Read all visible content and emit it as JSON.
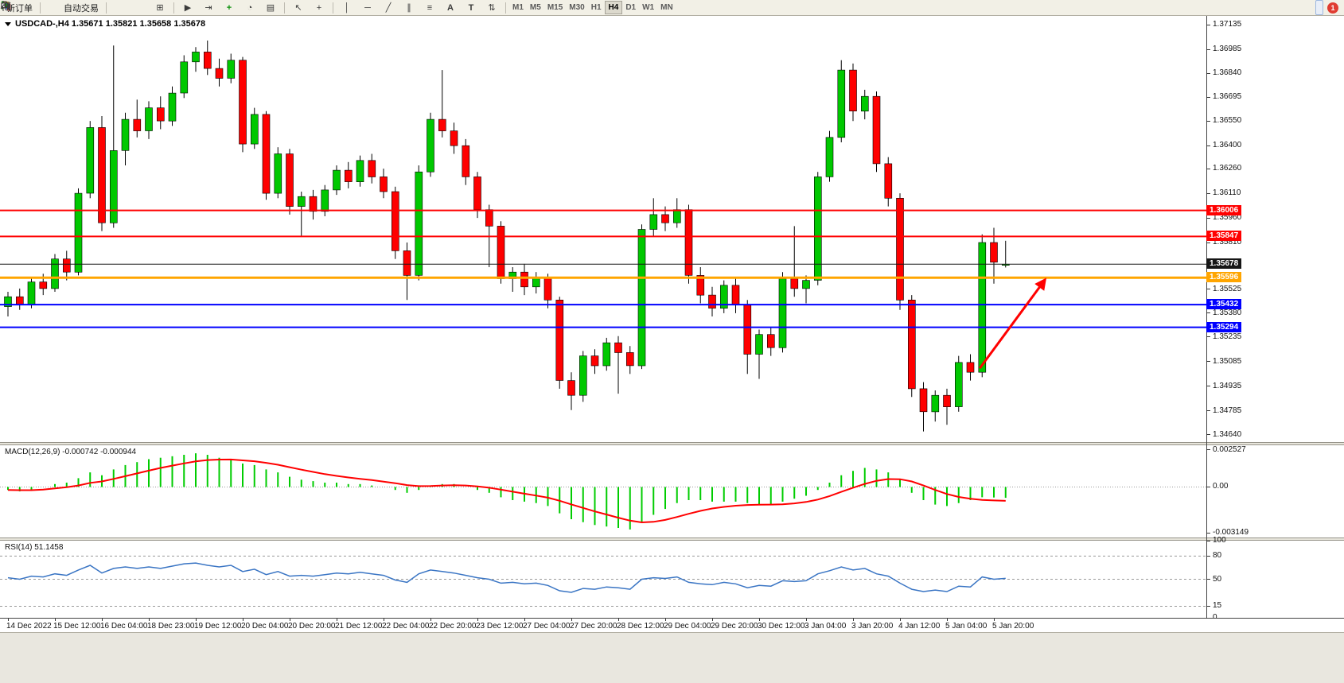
{
  "toolbar": {
    "new_order_label": "新订单",
    "autotrading_label": "自动交易",
    "glyphs": {
      "tile": "⊞",
      "auto_scroll": "▶",
      "chart_shift": "⇥",
      "indicators": "+",
      "periods": "◔",
      "templates": "▤",
      "cursor": "↖",
      "crosshair": "+",
      "vline": "│",
      "hline": "─",
      "trendline": "╱",
      "channel": "∥",
      "fibonacci": "≡",
      "text": "A",
      "text_label": "T",
      "arrows": "⇅"
    },
    "timeframes": [
      "M1",
      "M5",
      "M15",
      "M30",
      "H1",
      "H4",
      "D1",
      "W1",
      "MN"
    ],
    "active_timeframe": "H4",
    "notification_count": "1"
  },
  "chart": {
    "title": "USDCAD-,H4 1.35671 1.35821 1.35658 1.35678",
    "symbol": "USDCAD-",
    "period": "H4",
    "ohlc": {
      "open": "1.35671",
      "high": "1.35821",
      "low": "1.35658",
      "close": "1.35678"
    },
    "colors": {
      "up": "#00C800",
      "down": "#FE0000",
      "wick": "#000000",
      "background": "#FFFFFF"
    },
    "y_axis": {
      "max": 1.37185,
      "min": 1.346,
      "labels": [
        "1.37135",
        "1.36985",
        "1.36840",
        "1.36695",
        "1.36550",
        "1.36400",
        "1.36260",
        "1.36110",
        "1.35960",
        "1.35810",
        "1.35525",
        "1.35380",
        "1.35235",
        "1.35085",
        "1.34935",
        "1.34785",
        "1.34640"
      ]
    },
    "hlines": [
      {
        "price": 1.36006,
        "label": "1.36006",
        "color": "#FF0000",
        "width": 2
      },
      {
        "price": 1.35847,
        "label": "1.35847",
        "color": "#FF0000",
        "width": 2
      },
      {
        "price": 1.35678,
        "label": "1.35678",
        "color": "#161616",
        "width": 1
      },
      {
        "price": 1.35596,
        "label": "1.35596",
        "color": "#FFA500",
        "width": 3
      },
      {
        "price": 1.35432,
        "label": "1.35432",
        "color": "#0000FF",
        "width": 2
      },
      {
        "price": 1.35294,
        "label": "1.35294",
        "color": "#0000FF",
        "width": 2
      }
    ],
    "arrow": {
      "from_index": 82.8,
      "from_price": 1.35045,
      "to_index": 88.3,
      "to_price": 1.35578,
      "color": "#FF0000"
    },
    "candles": [
      [
        1.3542,
        1.3551,
        1.3536,
        1.3548
      ],
      [
        1.3548,
        1.3553,
        1.354,
        1.3543
      ],
      [
        1.3543,
        1.356,
        1.3541,
        1.3557
      ],
      [
        1.3557,
        1.3562,
        1.3549,
        1.3553
      ],
      [
        1.3553,
        1.3574,
        1.3551,
        1.3571
      ],
      [
        1.3571,
        1.3576,
        1.3558,
        1.3563
      ],
      [
        1.3563,
        1.3614,
        1.3561,
        1.3611
      ],
      [
        1.3611,
        1.3655,
        1.3608,
        1.3651
      ],
      [
        1.3651,
        1.3658,
        1.3588,
        1.3593
      ],
      [
        1.3593,
        1.3701,
        1.359,
        1.3637
      ],
      [
        1.3637,
        1.366,
        1.3628,
        1.3656
      ],
      [
        1.3656,
        1.3668,
        1.3645,
        1.3649
      ],
      [
        1.3649,
        1.3667,
        1.3644,
        1.3663
      ],
      [
        1.3663,
        1.367,
        1.365,
        1.3655
      ],
      [
        1.3655,
        1.3676,
        1.3652,
        1.3672
      ],
      [
        1.3672,
        1.3695,
        1.3669,
        1.3691
      ],
      [
        1.3691,
        1.37,
        1.3685,
        1.3697
      ],
      [
        1.3697,
        1.3704,
        1.3683,
        1.3687
      ],
      [
        1.3687,
        1.3693,
        1.3676,
        1.3681
      ],
      [
        1.3681,
        1.3696,
        1.3678,
        1.3692
      ],
      [
        1.3692,
        1.3694,
        1.3636,
        1.3641
      ],
      [
        1.3641,
        1.3663,
        1.3638,
        1.3659
      ],
      [
        1.3659,
        1.3661,
        1.3607,
        1.3611
      ],
      [
        1.3611,
        1.3639,
        1.3608,
        1.3635
      ],
      [
        1.3635,
        1.3638,
        1.3598,
        1.3603
      ],
      [
        1.3603,
        1.3612,
        1.3585,
        1.3609
      ],
      [
        1.3609,
        1.3613,
        1.3595,
        1.36
      ],
      [
        1.36,
        1.3616,
        1.3597,
        1.3613
      ],
      [
        1.3613,
        1.3628,
        1.361,
        1.3625
      ],
      [
        1.3625,
        1.363,
        1.3614,
        1.3618
      ],
      [
        1.3618,
        1.3634,
        1.3615,
        1.3631
      ],
      [
        1.3631,
        1.3635,
        1.3617,
        1.3621
      ],
      [
        1.3621,
        1.3626,
        1.3608,
        1.3612
      ],
      [
        1.3612,
        1.3615,
        1.3571,
        1.3576
      ],
      [
        1.3576,
        1.3581,
        1.3546,
        1.3561
      ],
      [
        1.3561,
        1.3628,
        1.3558,
        1.3624
      ],
      [
        1.3624,
        1.366,
        1.3621,
        1.3656
      ],
      [
        1.3656,
        1.3686,
        1.3645,
        1.3649
      ],
      [
        1.3649,
        1.3654,
        1.3635,
        1.364
      ],
      [
        1.364,
        1.3644,
        1.3616,
        1.3621
      ],
      [
        1.3621,
        1.3624,
        1.3596,
        1.3601
      ],
      [
        1.3601,
        1.3604,
        1.3566,
        1.3591
      ],
      [
        1.3591,
        1.3594,
        1.3556,
        1.3559
      ],
      [
        1.3559,
        1.3566,
        1.3551,
        1.3563
      ],
      [
        1.3563,
        1.3568,
        1.3549,
        1.3554
      ],
      [
        1.3554,
        1.3563,
        1.355,
        1.356
      ],
      [
        1.356,
        1.3562,
        1.3541,
        1.3546
      ],
      [
        1.3546,
        1.3548,
        1.3492,
        1.3497
      ],
      [
        1.3497,
        1.3502,
        1.3479,
        1.3488
      ],
      [
        1.3488,
        1.3515,
        1.3484,
        1.3512
      ],
      [
        1.3512,
        1.3516,
        1.3501,
        1.3506
      ],
      [
        1.3506,
        1.3523,
        1.3503,
        1.352
      ],
      [
        1.352,
        1.3524,
        1.3489,
        1.3514
      ],
      [
        1.3514,
        1.3518,
        1.3501,
        1.3506
      ],
      [
        1.3506,
        1.3592,
        1.3504,
        1.3589
      ],
      [
        1.3589,
        1.3608,
        1.3585,
        1.3598
      ],
      [
        1.3598,
        1.3603,
        1.3588,
        1.3593
      ],
      [
        1.3593,
        1.3608,
        1.359,
        1.3601
      ],
      [
        1.3601,
        1.3604,
        1.3556,
        1.3561
      ],
      [
        1.3561,
        1.3566,
        1.3544,
        1.3549
      ],
      [
        1.3549,
        1.3554,
        1.3536,
        1.3541
      ],
      [
        1.3541,
        1.3558,
        1.3538,
        1.3555
      ],
      [
        1.3555,
        1.3559,
        1.3538,
        1.3543
      ],
      [
        1.3543,
        1.3546,
        1.3501,
        1.3513
      ],
      [
        1.3513,
        1.3528,
        1.3498,
        1.3525
      ],
      [
        1.3525,
        1.3529,
        1.3512,
        1.3517
      ],
      [
        1.3517,
        1.3563,
        1.3514,
        1.3559
      ],
      [
        1.3559,
        1.3591,
        1.3548,
        1.3553
      ],
      [
        1.3553,
        1.3561,
        1.3544,
        1.3558
      ],
      [
        1.3558,
        1.3624,
        1.3555,
        1.3621
      ],
      [
        1.3621,
        1.3649,
        1.3618,
        1.3645
      ],
      [
        1.3645,
        1.3692,
        1.3642,
        1.3686
      ],
      [
        1.3686,
        1.369,
        1.3655,
        1.3661
      ],
      [
        1.3661,
        1.3674,
        1.3656,
        1.367
      ],
      [
        1.367,
        1.3673,
        1.3624,
        1.3629
      ],
      [
        1.3629,
        1.3633,
        1.3603,
        1.3608
      ],
      [
        1.3608,
        1.3611,
        1.354,
        1.3546
      ],
      [
        1.3546,
        1.3549,
        1.3487,
        1.3492
      ],
      [
        1.3492,
        1.3496,
        1.3466,
        1.3478
      ],
      [
        1.3478,
        1.3491,
        1.3472,
        1.3488
      ],
      [
        1.3488,
        1.3492,
        1.347,
        1.3481
      ],
      [
        1.3481,
        1.3512,
        1.3478,
        1.3508
      ],
      [
        1.3508,
        1.3513,
        1.3497,
        1.3502
      ],
      [
        1.3502,
        1.3586,
        1.3499,
        1.3581
      ],
      [
        1.3581,
        1.359,
        1.3556,
        1.3569
      ],
      [
        1.35671,
        1.35821,
        1.35658,
        1.35678
      ]
    ]
  },
  "time_axis": {
    "labels": [
      {
        "i": 0,
        "t": "14 Dec 2022"
      },
      {
        "i": 4,
        "t": "15 Dec 12:00"
      },
      {
        "i": 8,
        "t": "16 Dec 04:00"
      },
      {
        "i": 12,
        "t": "18 Dec 23:00"
      },
      {
        "i": 16,
        "t": "19 Dec 12:00"
      },
      {
        "i": 20,
        "t": "20 Dec 04:00"
      },
      {
        "i": 24,
        "t": "20 Dec 20:00"
      },
      {
        "i": 28,
        "t": "21 Dec 12:00"
      },
      {
        "i": 32,
        "t": "22 Dec 04:00"
      },
      {
        "i": 36,
        "t": "22 Dec 20:00"
      },
      {
        "i": 40,
        "t": "23 Dec 12:00"
      },
      {
        "i": 44,
        "t": "27 Dec 04:00"
      },
      {
        "i": 48,
        "t": "27 Dec 20:00"
      },
      {
        "i": 52,
        "t": "28 Dec 12:00"
      },
      {
        "i": 56,
        "t": "29 Dec 04:00"
      },
      {
        "i": 60,
        "t": "29 Dec 20:00"
      },
      {
        "i": 64,
        "t": "30 Dec 12:00"
      },
      {
        "i": 68,
        "t": "3 Jan 04:00"
      },
      {
        "i": 72,
        "t": "3 Jan 20:00"
      },
      {
        "i": 76,
        "t": "4 Jan 12:00"
      },
      {
        "i": 80,
        "t": "5 Jan 04:00"
      },
      {
        "i": 84,
        "t": "5 Jan 20:00"
      }
    ]
  },
  "macd": {
    "title": "MACD(12,26,9) -0.000742 -0.000944",
    "value": -0.000742,
    "signal_value": -0.000944,
    "histogram_color": "#00CC00",
    "signal_color": "#FF0000",
    "scale_max": 0.00285,
    "scale_min": -0.00345,
    "scale": [
      {
        "v": 0.002527,
        "t": "0.002527"
      },
      {
        "v": 0,
        "t": "0.00"
      },
      {
        "v": -0.003149,
        "t": "-0.003149"
      }
    ],
    "histogram": [
      -0.0002,
      -0.0003,
      -0.0002,
      0.0,
      0.0002,
      0.0003,
      0.0006,
      0.001,
      0.0008,
      0.0012,
      0.0015,
      0.0017,
      0.0019,
      0.002,
      0.0021,
      0.0022,
      0.0023,
      0.0022,
      0.002,
      0.0019,
      0.0016,
      0.0015,
      0.0012,
      0.001,
      0.0007,
      0.0005,
      0.0004,
      0.0003,
      0.0003,
      0.0002,
      0.0002,
      0.0001,
      0.0,
      -0.0002,
      -0.0004,
      -0.0002,
      0.0001,
      0.0002,
      0.0002,
      0.0,
      -0.0002,
      -0.0004,
      -0.0007,
      -0.0009,
      -0.001,
      -0.0011,
      -0.0013,
      -0.0018,
      -0.0022,
      -0.0024,
      -0.0026,
      -0.0027,
      -0.0028,
      -0.0029,
      -0.0024,
      -0.0019,
      -0.0015,
      -0.0011,
      -0.0009,
      -0.0009,
      -0.001,
      -0.001,
      -0.001,
      -0.0011,
      -0.0012,
      -0.0012,
      -0.001,
      -0.0008,
      -0.0006,
      -0.0002,
      0.0003,
      0.0008,
      0.0011,
      0.0013,
      0.0012,
      0.001,
      0.0005,
      -0.0004,
      -0.0009,
      -0.0012,
      -0.0013,
      -0.0011,
      -0.0009,
      -0.0007,
      -0.00072,
      -0.000742
    ],
    "signal": [
      -0.0002,
      -0.00022,
      -0.00022,
      -0.00018,
      -0.0001,
      -2e-05,
      0.0001,
      0.00028,
      0.00038,
      0.00055,
      0.00074,
      0.00093,
      0.00112,
      0.0013,
      0.00146,
      0.00161,
      0.00175,
      0.00184,
      0.00187,
      0.00188,
      0.00182,
      0.00176,
      0.00165,
      0.00152,
      0.00135,
      0.00118,
      0.00103,
      0.00088,
      0.00076,
      0.00065,
      0.00056,
      0.00047,
      0.00037,
      0.00026,
      0.00013,
      6e-05,
      7e-05,
      0.0001,
      0.00012,
      0.0001,
      4e-05,
      -5e-05,
      -0.00018,
      -0.00032,
      -0.00046,
      -0.00059,
      -0.00073,
      -0.00094,
      -0.00119,
      -0.00143,
      -0.00167,
      -0.00188,
      -0.0021,
      -0.0023,
      -0.00242,
      -0.00238,
      -0.00225,
      -0.00205,
      -0.00183,
      -0.00163,
      -0.00147,
      -0.00136,
      -0.00128,
      -0.00123,
      -0.00121,
      -0.0012,
      -0.00118,
      -0.00112,
      -0.00102,
      -0.00086,
      -0.00062,
      -0.00033,
      -5e-05,
      0.00021,
      0.00042,
      0.00054,
      0.00053,
      0.00038,
      0.0001,
      -0.0002,
      -0.00048,
      -0.00068,
      -0.0008,
      -0.00088,
      -0.00092,
      -0.000944
    ]
  },
  "rsi": {
    "title": "RSI(14) 51.1458",
    "value": 51.1458,
    "color": "#3A75C4",
    "levels": [
      80,
      50,
      15
    ],
    "scale": [
      {
        "v": 100,
        "t": "100"
      },
      {
        "v": 80,
        "t": "80"
      },
      {
        "v": 50,
        "t": "50"
      },
      {
        "v": 15,
        "t": "15"
      },
      {
        "v": 0,
        "t": "0"
      }
    ],
    "values": [
      52,
      50,
      54,
      53,
      57,
      55,
      62,
      68,
      58,
      64,
      66,
      64,
      66,
      64,
      67,
      70,
      71,
      68,
      66,
      68,
      60,
      63,
      56,
      60,
      54,
      55,
      54,
      56,
      58,
      57,
      59,
      57,
      55,
      49,
      46,
      57,
      62,
      60,
      58,
      55,
      52,
      50,
      45,
      46,
      44,
      45,
      42,
      35,
      33,
      38,
      37,
      40,
      39,
      37,
      50,
      52,
      51,
      53,
      46,
      44,
      43,
      46,
      44,
      39,
      42,
      41,
      48,
      47,
      48,
      57,
      61,
      66,
      62,
      64,
      57,
      54,
      45,
      37,
      34,
      36,
      34,
      41,
      40,
      53,
      50,
      51.1458
    ]
  }
}
